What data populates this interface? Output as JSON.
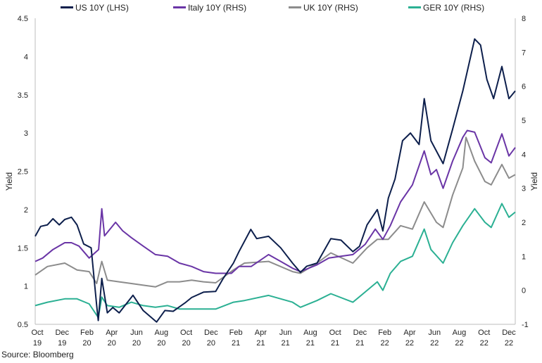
{
  "chart_data": {
    "type": "line",
    "ylabel_left": "Yield",
    "ylabel_right": "Yield",
    "ylim_left": [
      0.5,
      4.5
    ],
    "ylim_right": [
      -1,
      8
    ],
    "yticks_left": [
      "0.5",
      "1",
      "1.5",
      "2",
      "2.5",
      "3",
      "3.5",
      "4",
      "4.5"
    ],
    "yticks_right": [
      "-1",
      "0",
      "1",
      "2",
      "3",
      "4",
      "5",
      "6",
      "7",
      "8"
    ],
    "xticks": [
      {
        "month": "Oct",
        "year": "19"
      },
      {
        "month": "Dec",
        "year": "19"
      },
      {
        "month": "Feb",
        "year": "20"
      },
      {
        "month": "Apr",
        "year": "20"
      },
      {
        "month": "Jun",
        "year": "20"
      },
      {
        "month": "Aug",
        "year": "20"
      },
      {
        "month": "Oct",
        "year": "20"
      },
      {
        "month": "Dec",
        "year": "20"
      },
      {
        "month": "Feb",
        "year": "21"
      },
      {
        "month": "Apr",
        "year": "21"
      },
      {
        "month": "Jun",
        "year": "21"
      },
      {
        "month": "Aug",
        "year": "21"
      },
      {
        "month": "Oct",
        "year": "21"
      },
      {
        "month": "Dec",
        "year": "21"
      },
      {
        "month": "Feb",
        "year": "22"
      },
      {
        "month": "Apr",
        "year": "22"
      },
      {
        "month": "Jun",
        "year": "22"
      },
      {
        "month": "Aug",
        "year": "22"
      },
      {
        "month": "Oct",
        "year": "22"
      },
      {
        "month": "Dec",
        "year": "22"
      }
    ],
    "x_start": "2019-10-01",
    "x_end": "2023-01-31",
    "series": [
      {
        "name": "US 10Y (LHS)",
        "axis": "left",
        "color": "#0d1f4c",
        "points": [
          [
            "2019-10-01",
            1.65
          ],
          [
            "2019-10-15",
            1.78
          ],
          [
            "2019-11-01",
            1.8
          ],
          [
            "2019-11-15",
            1.88
          ],
          [
            "2019-12-01",
            1.8
          ],
          [
            "2019-12-15",
            1.87
          ],
          [
            "2020-01-01",
            1.9
          ],
          [
            "2020-01-15",
            1.8
          ],
          [
            "2020-02-01",
            1.55
          ],
          [
            "2020-02-20",
            1.5
          ],
          [
            "2020-03-05",
            0.75
          ],
          [
            "2020-03-09",
            0.55
          ],
          [
            "2020-03-18",
            1.1
          ],
          [
            "2020-04-01",
            0.65
          ],
          [
            "2020-04-15",
            0.72
          ],
          [
            "2020-05-01",
            0.65
          ],
          [
            "2020-06-05",
            0.88
          ],
          [
            "2020-07-01",
            0.68
          ],
          [
            "2020-08-04",
            0.53
          ],
          [
            "2020-08-25",
            0.68
          ],
          [
            "2020-09-15",
            0.67
          ],
          [
            "2020-10-15",
            0.78
          ],
          [
            "2020-11-01",
            0.85
          ],
          [
            "2020-12-01",
            0.92
          ],
          [
            "2021-01-01",
            0.93
          ],
          [
            "2021-01-20",
            1.1
          ],
          [
            "2021-02-15",
            1.3
          ],
          [
            "2021-03-01",
            1.45
          ],
          [
            "2021-03-31",
            1.74
          ],
          [
            "2021-04-15",
            1.62
          ],
          [
            "2021-05-15",
            1.65
          ],
          [
            "2021-06-15",
            1.5
          ],
          [
            "2021-07-15",
            1.3
          ],
          [
            "2021-08-04",
            1.18
          ],
          [
            "2021-08-20",
            1.26
          ],
          [
            "2021-09-15",
            1.3
          ],
          [
            "2021-10-20",
            1.62
          ],
          [
            "2021-11-15",
            1.6
          ],
          [
            "2021-12-15",
            1.45
          ],
          [
            "2022-01-01",
            1.52
          ],
          [
            "2022-01-20",
            1.8
          ],
          [
            "2022-02-15",
            2.0
          ],
          [
            "2022-03-01",
            1.72
          ],
          [
            "2022-03-15",
            2.15
          ],
          [
            "2022-04-01",
            2.4
          ],
          [
            "2022-04-20",
            2.9
          ],
          [
            "2022-05-10",
            3.0
          ],
          [
            "2022-06-01",
            2.85
          ],
          [
            "2022-06-14",
            3.45
          ],
          [
            "2022-07-01",
            2.9
          ],
          [
            "2022-08-01",
            2.6
          ],
          [
            "2022-08-25",
            3.05
          ],
          [
            "2022-09-20",
            3.55
          ],
          [
            "2022-10-20",
            4.23
          ],
          [
            "2022-11-04",
            4.15
          ],
          [
            "2022-11-20",
            3.7
          ],
          [
            "2022-12-07",
            3.45
          ],
          [
            "2022-12-28",
            3.87
          ],
          [
            "2023-01-15",
            3.45
          ],
          [
            "2023-01-31",
            3.55
          ]
        ]
      },
      {
        "name": "Italy 10Y (RHS)",
        "axis": "right",
        "color": "#6a35a6",
        "points": [
          [
            "2019-10-01",
            0.85
          ],
          [
            "2019-10-20",
            0.95
          ],
          [
            "2019-11-15",
            1.2
          ],
          [
            "2019-12-15",
            1.4
          ],
          [
            "2020-01-01",
            1.4
          ],
          [
            "2020-01-20",
            1.3
          ],
          [
            "2020-02-15",
            0.95
          ],
          [
            "2020-03-10",
            1.2
          ],
          [
            "2020-03-18",
            2.4
          ],
          [
            "2020-03-25",
            1.6
          ],
          [
            "2020-04-22",
            2.0
          ],
          [
            "2020-05-10",
            1.75
          ],
          [
            "2020-06-01",
            1.55
          ],
          [
            "2020-07-01",
            1.3
          ],
          [
            "2020-08-01",
            1.05
          ],
          [
            "2020-09-01",
            1.0
          ],
          [
            "2020-10-01",
            0.8
          ],
          [
            "2020-11-01",
            0.7
          ],
          [
            "2020-12-01",
            0.55
          ],
          [
            "2021-01-01",
            0.5
          ],
          [
            "2021-02-10",
            0.5
          ],
          [
            "2021-03-01",
            0.7
          ],
          [
            "2021-04-01",
            0.7
          ],
          [
            "2021-05-15",
            1.05
          ],
          [
            "2021-06-15",
            0.85
          ],
          [
            "2021-07-15",
            0.65
          ],
          [
            "2021-08-04",
            0.55
          ],
          [
            "2021-09-15",
            0.75
          ],
          [
            "2021-10-15",
            0.95
          ],
          [
            "2021-11-15",
            1.0
          ],
          [
            "2021-12-15",
            1.05
          ],
          [
            "2022-01-15",
            1.35
          ],
          [
            "2022-02-10",
            1.8
          ],
          [
            "2022-03-01",
            1.5
          ],
          [
            "2022-03-20",
            1.9
          ],
          [
            "2022-04-15",
            2.6
          ],
          [
            "2022-05-15",
            3.1
          ],
          [
            "2022-06-14",
            4.1
          ],
          [
            "2022-07-01",
            3.4
          ],
          [
            "2022-07-15",
            3.55
          ],
          [
            "2022-08-01",
            3.0
          ],
          [
            "2022-08-25",
            3.8
          ],
          [
            "2022-09-20",
            4.5
          ],
          [
            "2022-10-01",
            4.7
          ],
          [
            "2022-10-20",
            4.65
          ],
          [
            "2022-11-15",
            3.9
          ],
          [
            "2022-12-01",
            3.75
          ],
          [
            "2022-12-28",
            4.6
          ],
          [
            "2023-01-15",
            3.95
          ],
          [
            "2023-01-31",
            4.2
          ]
        ]
      },
      {
        "name": "UK 10Y (RHS)",
        "axis": "right",
        "color": "#8c8c8c",
        "points": [
          [
            "2019-10-01",
            0.45
          ],
          [
            "2019-11-01",
            0.7
          ],
          [
            "2019-12-15",
            0.8
          ],
          [
            "2020-01-15",
            0.6
          ],
          [
            "2020-02-15",
            0.55
          ],
          [
            "2020-03-05",
            0.2
          ],
          [
            "2020-03-18",
            0.85
          ],
          [
            "2020-04-01",
            0.3
          ],
          [
            "2020-05-01",
            0.25
          ],
          [
            "2020-06-01",
            0.2
          ],
          [
            "2020-07-01",
            0.15
          ],
          [
            "2020-08-01",
            0.1
          ],
          [
            "2020-09-01",
            0.25
          ],
          [
            "2020-10-01",
            0.25
          ],
          [
            "2020-11-01",
            0.3
          ],
          [
            "2020-12-01",
            0.25
          ],
          [
            "2021-01-01",
            0.22
          ],
          [
            "2021-02-15",
            0.6
          ],
          [
            "2021-03-15",
            0.8
          ],
          [
            "2021-05-15",
            0.85
          ],
          [
            "2021-07-15",
            0.55
          ],
          [
            "2021-08-04",
            0.5
          ],
          [
            "2021-09-15",
            0.8
          ],
          [
            "2021-10-20",
            1.1
          ],
          [
            "2021-12-15",
            0.8
          ],
          [
            "2022-01-20",
            1.25
          ],
          [
            "2022-02-15",
            1.5
          ],
          [
            "2022-03-15",
            1.5
          ],
          [
            "2022-04-15",
            1.9
          ],
          [
            "2022-05-15",
            1.8
          ],
          [
            "2022-06-14",
            2.6
          ],
          [
            "2022-07-15",
            2.0
          ],
          [
            "2022-08-01",
            1.85
          ],
          [
            "2022-08-25",
            2.8
          ],
          [
            "2022-09-20",
            3.6
          ],
          [
            "2022-09-28",
            4.5
          ],
          [
            "2022-10-20",
            3.8
          ],
          [
            "2022-11-15",
            3.2
          ],
          [
            "2022-12-01",
            3.1
          ],
          [
            "2022-12-28",
            3.7
          ],
          [
            "2023-01-15",
            3.3
          ],
          [
            "2023-01-31",
            3.4
          ]
        ]
      },
      {
        "name": "GER 10Y (RHS)",
        "axis": "right",
        "color": "#2bb093",
        "points": [
          [
            "2019-10-01",
            -0.45
          ],
          [
            "2019-11-01",
            -0.35
          ],
          [
            "2019-12-15",
            -0.25
          ],
          [
            "2020-01-15",
            -0.25
          ],
          [
            "2020-02-15",
            -0.4
          ],
          [
            "2020-03-09",
            -0.8
          ],
          [
            "2020-03-18",
            -0.2
          ],
          [
            "2020-04-01",
            -0.45
          ],
          [
            "2020-05-01",
            -0.5
          ],
          [
            "2020-06-01",
            -0.35
          ],
          [
            "2020-07-01",
            -0.45
          ],
          [
            "2020-08-01",
            -0.5
          ],
          [
            "2020-09-01",
            -0.45
          ],
          [
            "2020-10-01",
            -0.55
          ],
          [
            "2020-11-01",
            -0.55
          ],
          [
            "2020-12-01",
            -0.55
          ],
          [
            "2021-01-01",
            -0.55
          ],
          [
            "2021-02-15",
            -0.35
          ],
          [
            "2021-03-15",
            -0.3
          ],
          [
            "2021-05-15",
            -0.15
          ],
          [
            "2021-07-15",
            -0.35
          ],
          [
            "2021-08-04",
            -0.5
          ],
          [
            "2021-09-15",
            -0.3
          ],
          [
            "2021-10-20",
            -0.1
          ],
          [
            "2021-12-15",
            -0.35
          ],
          [
            "2022-01-15",
            -0.05
          ],
          [
            "2022-02-15",
            0.25
          ],
          [
            "2022-03-01",
            0.0
          ],
          [
            "2022-03-20",
            0.5
          ],
          [
            "2022-04-15",
            0.85
          ],
          [
            "2022-05-15",
            1.0
          ],
          [
            "2022-06-14",
            1.8
          ],
          [
            "2022-07-01",
            1.2
          ],
          [
            "2022-08-01",
            0.8
          ],
          [
            "2022-08-25",
            1.4
          ],
          [
            "2022-09-20",
            1.9
          ],
          [
            "2022-10-20",
            2.4
          ],
          [
            "2022-11-15",
            2.0
          ],
          [
            "2022-12-01",
            1.85
          ],
          [
            "2022-12-28",
            2.55
          ],
          [
            "2023-01-15",
            2.15
          ],
          [
            "2023-01-31",
            2.3
          ]
        ]
      }
    ]
  },
  "source": "Source: Bloomberg"
}
